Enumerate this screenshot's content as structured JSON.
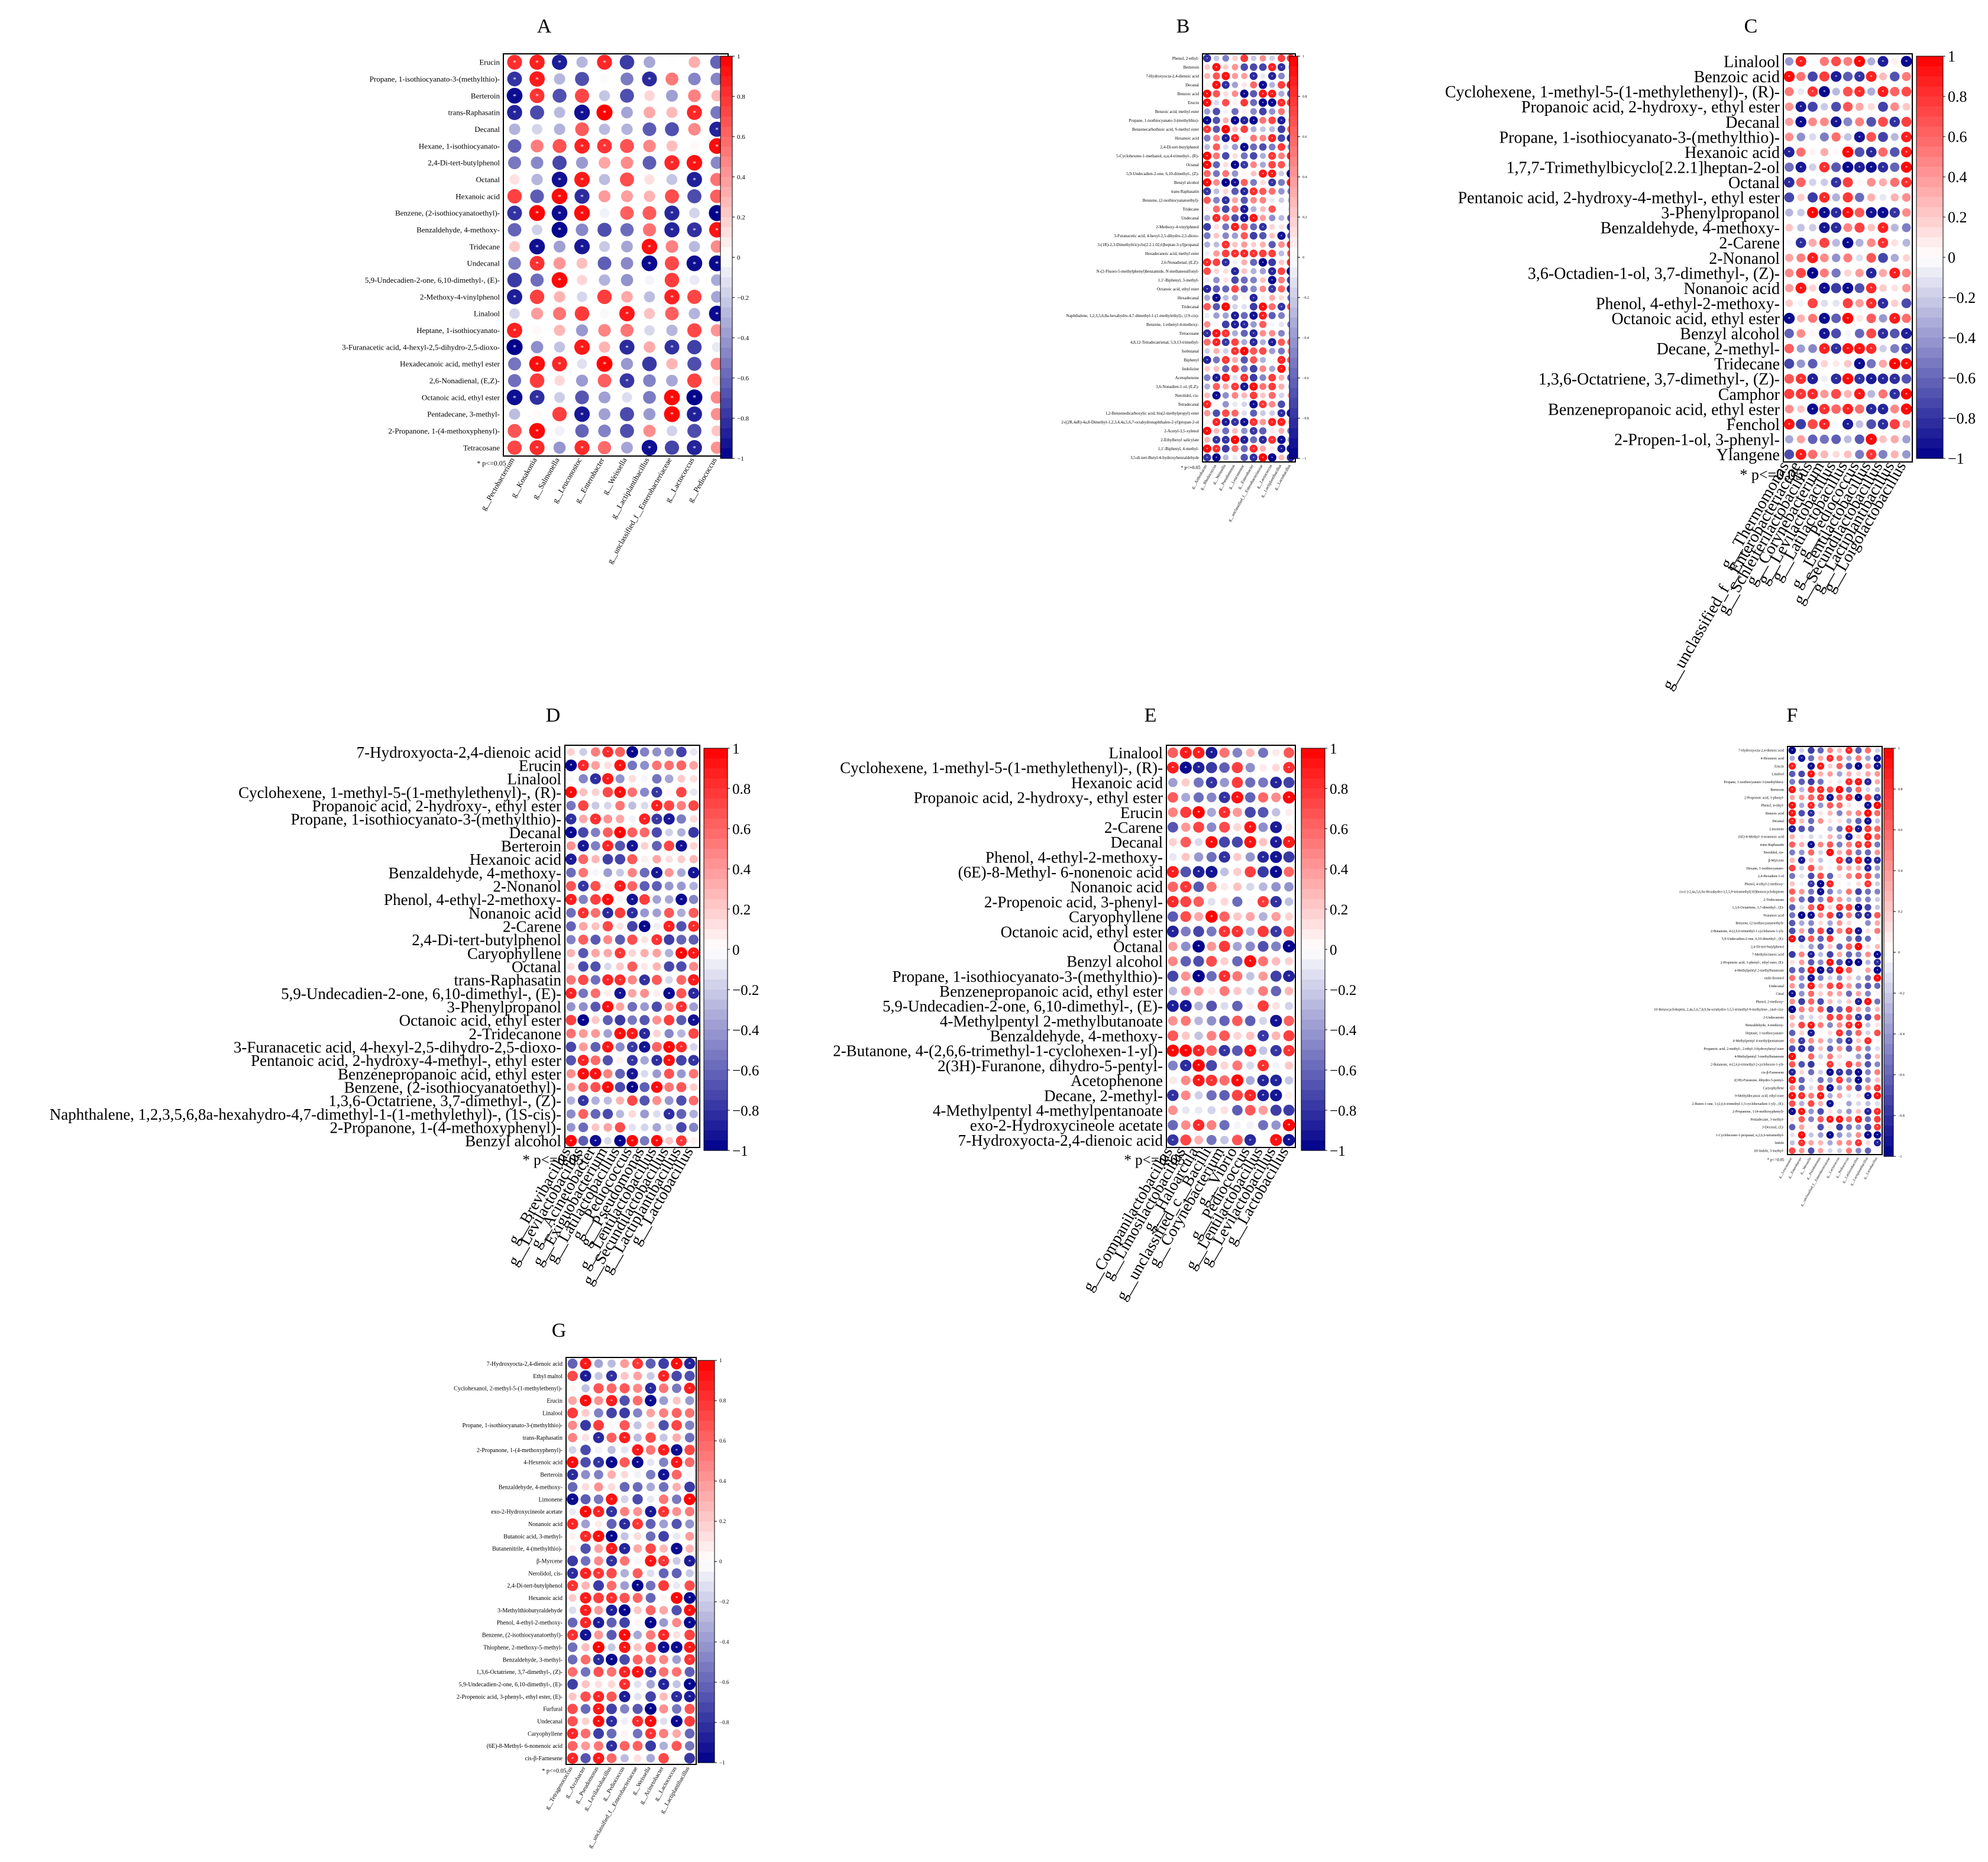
{
  "colors": {
    "negative": "#00008b",
    "mid": "#ffffff",
    "positive": "#ff0000",
    "frame": "#000000"
  },
  "note": "* p<=0.05",
  "colorbar_ticks": [
    "1",
    "0.8",
    "0.6",
    "0.4",
    "0.2",
    "0",
    "−0.2",
    "−0.4",
    "−0.6",
    "−0.8",
    "−1"
  ],
  "chart_data": [
    {
      "type": "heatmap",
      "panel": "A",
      "title": "A",
      "rows": [
        "Erucin",
        "Propane, 1-isothiocyanato-3-(methylthio)-",
        "Berteroin",
        "trans-Raphasatin",
        "Decanal",
        "Hexane, 1-isothiocyanato-",
        "2,4-Di-tert-butylphenol",
        "Octanal",
        "Hexanoic acid",
        "Benzene, (2-isothiocyanatoethyl)-",
        "Benzaldehyde, 4-methoxy-",
        "Tridecane",
        "Undecanal",
        "5,9-Undecadien-2-one, 6,10-dimethyl-, (E)-",
        "2-Methoxy-4-vinylphenol",
        "Linalool",
        "Heptane, 1-isothiocyanato-",
        "3-Furanacetic acid, 4-hexyl-2,5-dihydro-2,5-dioxo-",
        "Hexadecanoic acid, methyl ester",
        "2,6-Nonadienal, (E,Z)-",
        "Octanoic acid, ethyl ester",
        "Pentadecane, 3-methyl-",
        "2-Propanone, 1-(4-methoxyphenyl)-",
        "Tetracosane"
      ],
      "columns": [
        "g__Pectobacterium",
        "g__Kosakonia",
        "g__Salmonella",
        "g__Leuconostoc",
        "g__Enterobacter",
        "g__Weissella",
        "g__Lactiplantibacillus",
        "g__unclassified_f__Enterobacteriaceae",
        "g__Lactococcus",
        "g__Pediococcus"
      ],
      "value_range": [
        -1,
        1
      ],
      "note": "* p<=0.05"
    },
    {
      "type": "heatmap",
      "panel": "B",
      "title": "B",
      "rows": [
        "Phenol, 2-ethyl-",
        "Berteroin",
        "7-Hydroxyocta-2,4-dienoic acid",
        "Decanal",
        "Benzoic acid",
        "Erucin",
        "Benzoic acid, methyl ester",
        "Propane, 1-isothiocyanato-3-(methylthio)-",
        "Benzenecarbothioic acid, S-methyl ester",
        "Hexanoic acid",
        "2,4-Di-tert-butylphenol",
        "5-Cyclohexene-1-methanol, α,α,4-trimethyl-, (R)-",
        "Octanal",
        "5,9-Undecadien-2-one, 6,10-dimethyl-, (Z)-",
        "Benzyl alcohol",
        "trans-Raphasatin",
        "Benzene, (2-isothiocyanatoethyl)-",
        "Tridecane",
        "Undecanal",
        "2-Methoxy-4-vinylphenol",
        "3-Furanacetic acid, 4-hexyl-2,5-dihydro-2,5-dioxo-",
        "3-(1R)-2,3-Dimethyltricyclo[2.2.1.02,6]heptan-3-yl]propanal",
        "Hexadecanoic acid, methyl ester",
        "2,6-Nonadienal, (E,Z)-",
        "N-(2-Fluoro-5-methylphenyl)benzamide, N-methanesulfonyl-",
        "1,1'-Biphenyl, 3-methyl-",
        "Octanoic acid, ethyl ester",
        "Hexadecanal",
        "Tridecanal",
        "Naphthalene, 1,2,3,5,6,8a-hexahydro-4,7-dimethyl-1-(1-methylethyl)-, (1S-cis)-",
        "Benzene, 1-ethenyl-4-methoxy-",
        "Tetracosane",
        "4,8,12-Tetradecatrienal, 5,9,13-trimethyl-",
        "Isobutanal",
        "Biphenyl",
        "Indolizine",
        "Acetophenone",
        "3,6-Nonadien-1-ol, (E,Z)-",
        "Nerolidol, cis-",
        "Tetradecanal",
        "1,2-Benzenedicarboxylic acid, bis(2-methylpropyl) ester",
        "2-((2R,4aR)-4a,8-Dimethyl-1,2,3,4,4a,5,6,7-octahydronaphthalen-2-yl)propan-2-ol",
        "2-Acetyl-3,5-xylenol",
        "2-Ethylhexyl salicylate",
        "1,1'-Biphenyl, 4-methyl-",
        "3,5-di-tert-Butyl-4-hydroxybenzaldehyde"
      ],
      "columns": [
        "g__Arthrobacter",
        "g__Rhodococcus",
        "g__Weissella",
        "g__Pseudomonas",
        "g__Leuconostoc",
        "g__Enterobacter",
        "g__unclassified_f__Enterobacteriaceae",
        "g__Lactococcus",
        "g__Lactiplantibacillus",
        "g__Lactobacillus"
      ],
      "value_range": [
        -1,
        1
      ],
      "note": "* p<=0.05"
    },
    {
      "type": "heatmap",
      "panel": "C",
      "title": "C",
      "rows": [
        "Linalool",
        "Benzoic acid",
        "Cyclohexene, 1-methyl-5-(1-methylethenyl)-, (R)-",
        "Propanoic acid, 2-hydroxy-, ethyl ester",
        "Decanal",
        "Propane, 1-isothiocyanato-3-(methylthio)-",
        "Hexanoic acid",
        "1,7,7-Trimethylbicyclo[2.2.1]heptan-2-ol",
        "Octanal",
        "Pentanoic acid, 2-hydroxy-4-methyl-, ethyl ester",
        "3-Phenylpropanol",
        "Benzaldehyde, 4-methoxy-",
        "2-Carene",
        "2-Nonanol",
        "3,6-Octadien-1-ol, 3,7-dimethyl-, (Z)-",
        "Nonanoic acid",
        "Phenol, 4-ethyl-2-methoxy-",
        "Octanoic acid, ethyl ester",
        "Benzyl alcohol",
        "Decane, 2-methyl-",
        "Tridecane",
        "1,3,6-Octatriene, 3,7-dimethyl-, (Z)-",
        "Camphor",
        "Benzenepropanoic acid, ethyl ester",
        "Fenchol",
        "2-Propen-1-ol, 3-phenyl-",
        "Ylangene"
      ],
      "columns": [
        "g__Thermomonas",
        "g__unclassified_f__Enterobacteriaceae",
        "g__Schleiferilactobacillus",
        "g__Corynebacterium",
        "g__Levilactobacillus",
        "g__Latilactobacillus",
        "g__Pediococcus",
        "g__Lentilactobacillus",
        "g__Secundilactobacillus",
        "g__Lactiplantibacillus",
        "g__Loigolactobacillus"
      ],
      "value_range": [
        -1,
        1
      ],
      "note": "* p<=0.05"
    },
    {
      "type": "heatmap",
      "panel": "D",
      "title": "D",
      "rows": [
        "7-Hydroxyocta-2,4-dienoic acid",
        "Erucin",
        "Linalool",
        "Cyclohexene, 1-methyl-5-(1-methylethenyl)-, (R)-",
        "Propanoic acid, 2-hydroxy-, ethyl ester",
        "Propane, 1-isothiocyanato-3-(methylthio)-",
        "Decanal",
        "Berteroin",
        "Hexanoic acid",
        "Benzaldehyde, 4-methoxy-",
        "2-Nonanol",
        "Phenol, 4-ethyl-2-methoxy-",
        "Nonanoic acid",
        "2-Carene",
        "2,4-Di-tert-butylphenol",
        "Caryophyllene",
        "Octanal",
        "trans-Raphasatin",
        "5,9-Undecadien-2-one, 6,10-dimethyl-, (E)-",
        "3-Phenylpropanol",
        "Octanoic acid, ethyl ester",
        "2-Tridecanone",
        "3-Furanacetic acid, 4-hexyl-2,5-dihydro-2,5-dioxo-",
        "Pentanoic acid, 2-hydroxy-4-methyl-, ethyl ester",
        "Benzenepropanoic acid, ethyl ester",
        "Benzene, (2-isothiocyanatoethyl)-",
        "1,3,6-Octatriene, 3,7-dimethyl-, (Z)-",
        "Naphthalene, 1,2,3,5,6,8a-hexahydro-4,7-dimethyl-1-(1-methylethyl)-, (1S-cis)-",
        "2-Propanone, 1-(4-methoxyphenyl)-",
        "Benzyl alcohol"
      ],
      "columns": [
        "g__Brevibacillus",
        "g__Levilactobacillus",
        "g__Acinetobacter",
        "g__Exiguobacterium",
        "g__Latilactobacillus",
        "g__Pediococcus",
        "g__Pseudomonas",
        "g__Lentilactobacillus",
        "g__Secundilactobacillus",
        "g__Lactiplantibacillus",
        "g__Lactobacillus"
      ],
      "value_range": [
        -1,
        1
      ],
      "note": "* p<=0.05"
    },
    {
      "type": "heatmap",
      "panel": "E",
      "title": "E",
      "rows": [
        "Linalool",
        "Cyclohexene, 1-methyl-5-(1-methylethenyl)-, (R)-",
        "Hexanoic acid",
        "Propanoic acid, 2-hydroxy-, ethyl ester",
        "Erucin",
        "2-Carene",
        "Decanal",
        "Phenol, 4-ethyl-2-methoxy-",
        "(6E)-8-Methyl- 6-nonenoic acid",
        "Nonanoic acid",
        "2-Propenoic acid, 3-phenyl-",
        "Caryophyllene",
        "Octanoic acid, ethyl ester",
        "Octanal",
        "Benzyl alcohol",
        "Propane, 1-isothiocyanato-3-(methylthio)-",
        "Benzenepropanoic acid, ethyl ester",
        "5,9-Undecadien-2-one, 6,10-dimethyl-, (E)-",
        "4-Methylpentyl 2-methylbutanoate",
        "Benzaldehyde, 4-methoxy-",
        "2-Butanone, 4-(2,6,6-trimethyl-1-cyclohexen-1-yl)-",
        "2(3H)-Furanone, dihydro-5-pentyl-",
        "Acetophenone",
        "Decane, 2-methyl-",
        "4-Methylpentyl 4-methylpentanoate",
        "exo-2-Hydroxycineole acetate",
        "7-Hydroxyocta-2,4-dienoic acid"
      ],
      "columns": [
        "g__Companilactobacillus",
        "g__Limosilactobacillus",
        "g__Haloarcula",
        "g__unclassified_c__Bacilli",
        "g__Corynebacterium",
        "g__Vibrio",
        "g__Pediococcus",
        "g__Lentilactobacillus",
        "g__Levilactobacillus",
        "g__Lactobacillus"
      ],
      "value_range": [
        -1,
        1
      ],
      "note": "* p<=0.05"
    },
    {
      "type": "heatmap",
      "panel": "F",
      "title": "F",
      "rows": [
        "7-Hydroxyocta-2,4-dienoic acid",
        "4-Hexenoic acid",
        "Erucin",
        "Linalool",
        "Propane, 1-isothiocyanato-3-(methylthio)-",
        "Berteroin",
        "2-Propenoic acid, 3-phenyl-",
        "Phenol, 4-ethyl-",
        "Benzoic acid",
        "Decanal",
        "Limonene",
        "(6E)-8-Methyl- 6-nonenoic acid",
        "trans-Raphasatin",
        "Nerolidol, cis-",
        "β-Myrcene",
        "Hexane, 1-isothiocyanato-",
        "2,4-Hexadien-1-ol",
        "Phenol, 4-ethyl-2-methoxy-",
        "cis-(-)-2,4a,5,6,9a-Hexahydro-3,5,5,9-tetramethyl(1H)benzocycloheptene",
        "2-Tridecanone",
        "1,3,6-Octatriene, 3,7-dimethyl-, (Z)-",
        "Nonanoic acid",
        "Benzene, (2-isothiocyanatoethyl)-",
        "2-Butanone, 4-(2,6,6-trimethyl-1-cyclohexen-1-yl)-",
        "5,9-Undecadien-2-one, 6,10-dimethyl-, (E)-",
        "2,4-Di-tert-butylphenol",
        "7-Methyloctanoic acid",
        "2-Propenoic acid, 3-phenyl-, ethyl ester, (E)-",
        "4-Methylpentyl 2-methylbutanoate",
        "endo-Borneol",
        "Undecanal",
        "Citral",
        "Phenol, 2-methoxy-",
        "10-Benzocyclohepten, 2,4a,5,6,7,8,9,9a-octahydro-3,5,5-trimethyl-9-methylene-, (4aS-cis)-",
        "2-Undecanone",
        "Benzaldehyde, 4-methoxy-",
        "Heptane, 1-isothiocyanato-",
        "4-Methylpentyl 4-methylpentanoate",
        "Propanoic acid, 2-methyl-, 2-ethyl-3-hydroxyhexyl ester",
        "4-Methylpentyl 3-methylbutanoate",
        "2-Butanone, 4-(2,6,6-trimethyl-2-cyclohexen-1-yl)-",
        "cis-β-Farnesene",
        "2(3H)-Furanone, dihydro-5-pentyl-",
        "Caryophyllene",
        "9-Methyldecanoic acid, ethyl ester",
        "2-Buten-1-one, 1-(2,6,6-trimethyl-1,3-cyclohexadien-1-yl)-, (E)-",
        "2-Propanone, 1-(4-methoxyphenyl)-",
        "Pentadecane, 3-methyl-",
        "3-Decenal, (Z)-",
        "1-Cyclohexene-1-propanal, α,2,6,6-tetramethyl-",
        "Indole",
        "1H-Indole, 5-methyl-"
      ],
      "columns": [
        "g__Leuconostoc",
        "g__Enterobacter",
        "g__Weissella",
        "g__Pseudomonas",
        "g__unclassified_f__Enterobacteriaceae",
        "g__Lactococcus",
        "g__Pediococcus",
        "g__Latilactobacillus",
        "g__Lactiplantibacillus",
        "g__Lactobacillus"
      ],
      "value_range": [
        -1,
        1
      ],
      "note": "* p<=0.05"
    },
    {
      "type": "heatmap",
      "panel": "G",
      "title": "G",
      "rows": [
        "7-Hydroxyocta-2,4-dienoic acid",
        "Ethyl maltol",
        "Cyclohexanol, 2-methyl-5-(1-methylethenyl)-",
        "Erucin",
        "Linalool",
        "Propane, 1-isothiocyanato-3-(methylthio)-",
        "trans-Raphasatin",
        "2-Propanone, 1-(4-methoxyphenyl)-",
        "4-Hexenoic acid",
        "Berteroin",
        "Benzaldehyde, 4-methoxy-",
        "Limonene",
        "exo-2-Hydroxycineole acetate",
        "Nonanoic acid",
        "Butanoic acid, 3-methyl-",
        "Butanenitrile, 4-(methylthio)-",
        "β-Myrcene",
        "Nerolidol, cis-",
        "2,4-Di-tert-butylphenol",
        "Hexanoic acid",
        "3-Methylthiobutyraldehyde",
        "Phenol, 4-ethyl-2-methoxy-",
        "Benzene, (2-isothiocyanatoethyl)-",
        "Thiophene, 2-methoxy-5-methyl-",
        "Benzaldehyde, 3-methyl-",
        "1,3,6-Octatriene, 3,7-dimethyl-, (Z)-",
        "5,9-Undecadien-2-one, 6,10-dimethyl-, (E)-",
        "2-Propenoic acid, 3-phenyl-, ethyl ester, (E)-",
        "Furfural",
        "Undecanal",
        "Caryophyllene",
        "(6E)-8-Methyl- 6-nonenoic acid",
        "cis-β-Farnesene"
      ],
      "columns": [
        "g__Tetragenococcus",
        "g__Arcobacter",
        "g__Pseudomonas",
        "g__Levilactobacillus",
        "g__Pediococcus",
        "g__unclassified_f__Enterobacteriaceae",
        "g__Weissella",
        "g__Acinetobacter",
        "g__Lactococcus",
        "g__Lactiplantibacillus"
      ],
      "value_range": [
        -1,
        1
      ],
      "note": "* p<=0.05"
    }
  ]
}
